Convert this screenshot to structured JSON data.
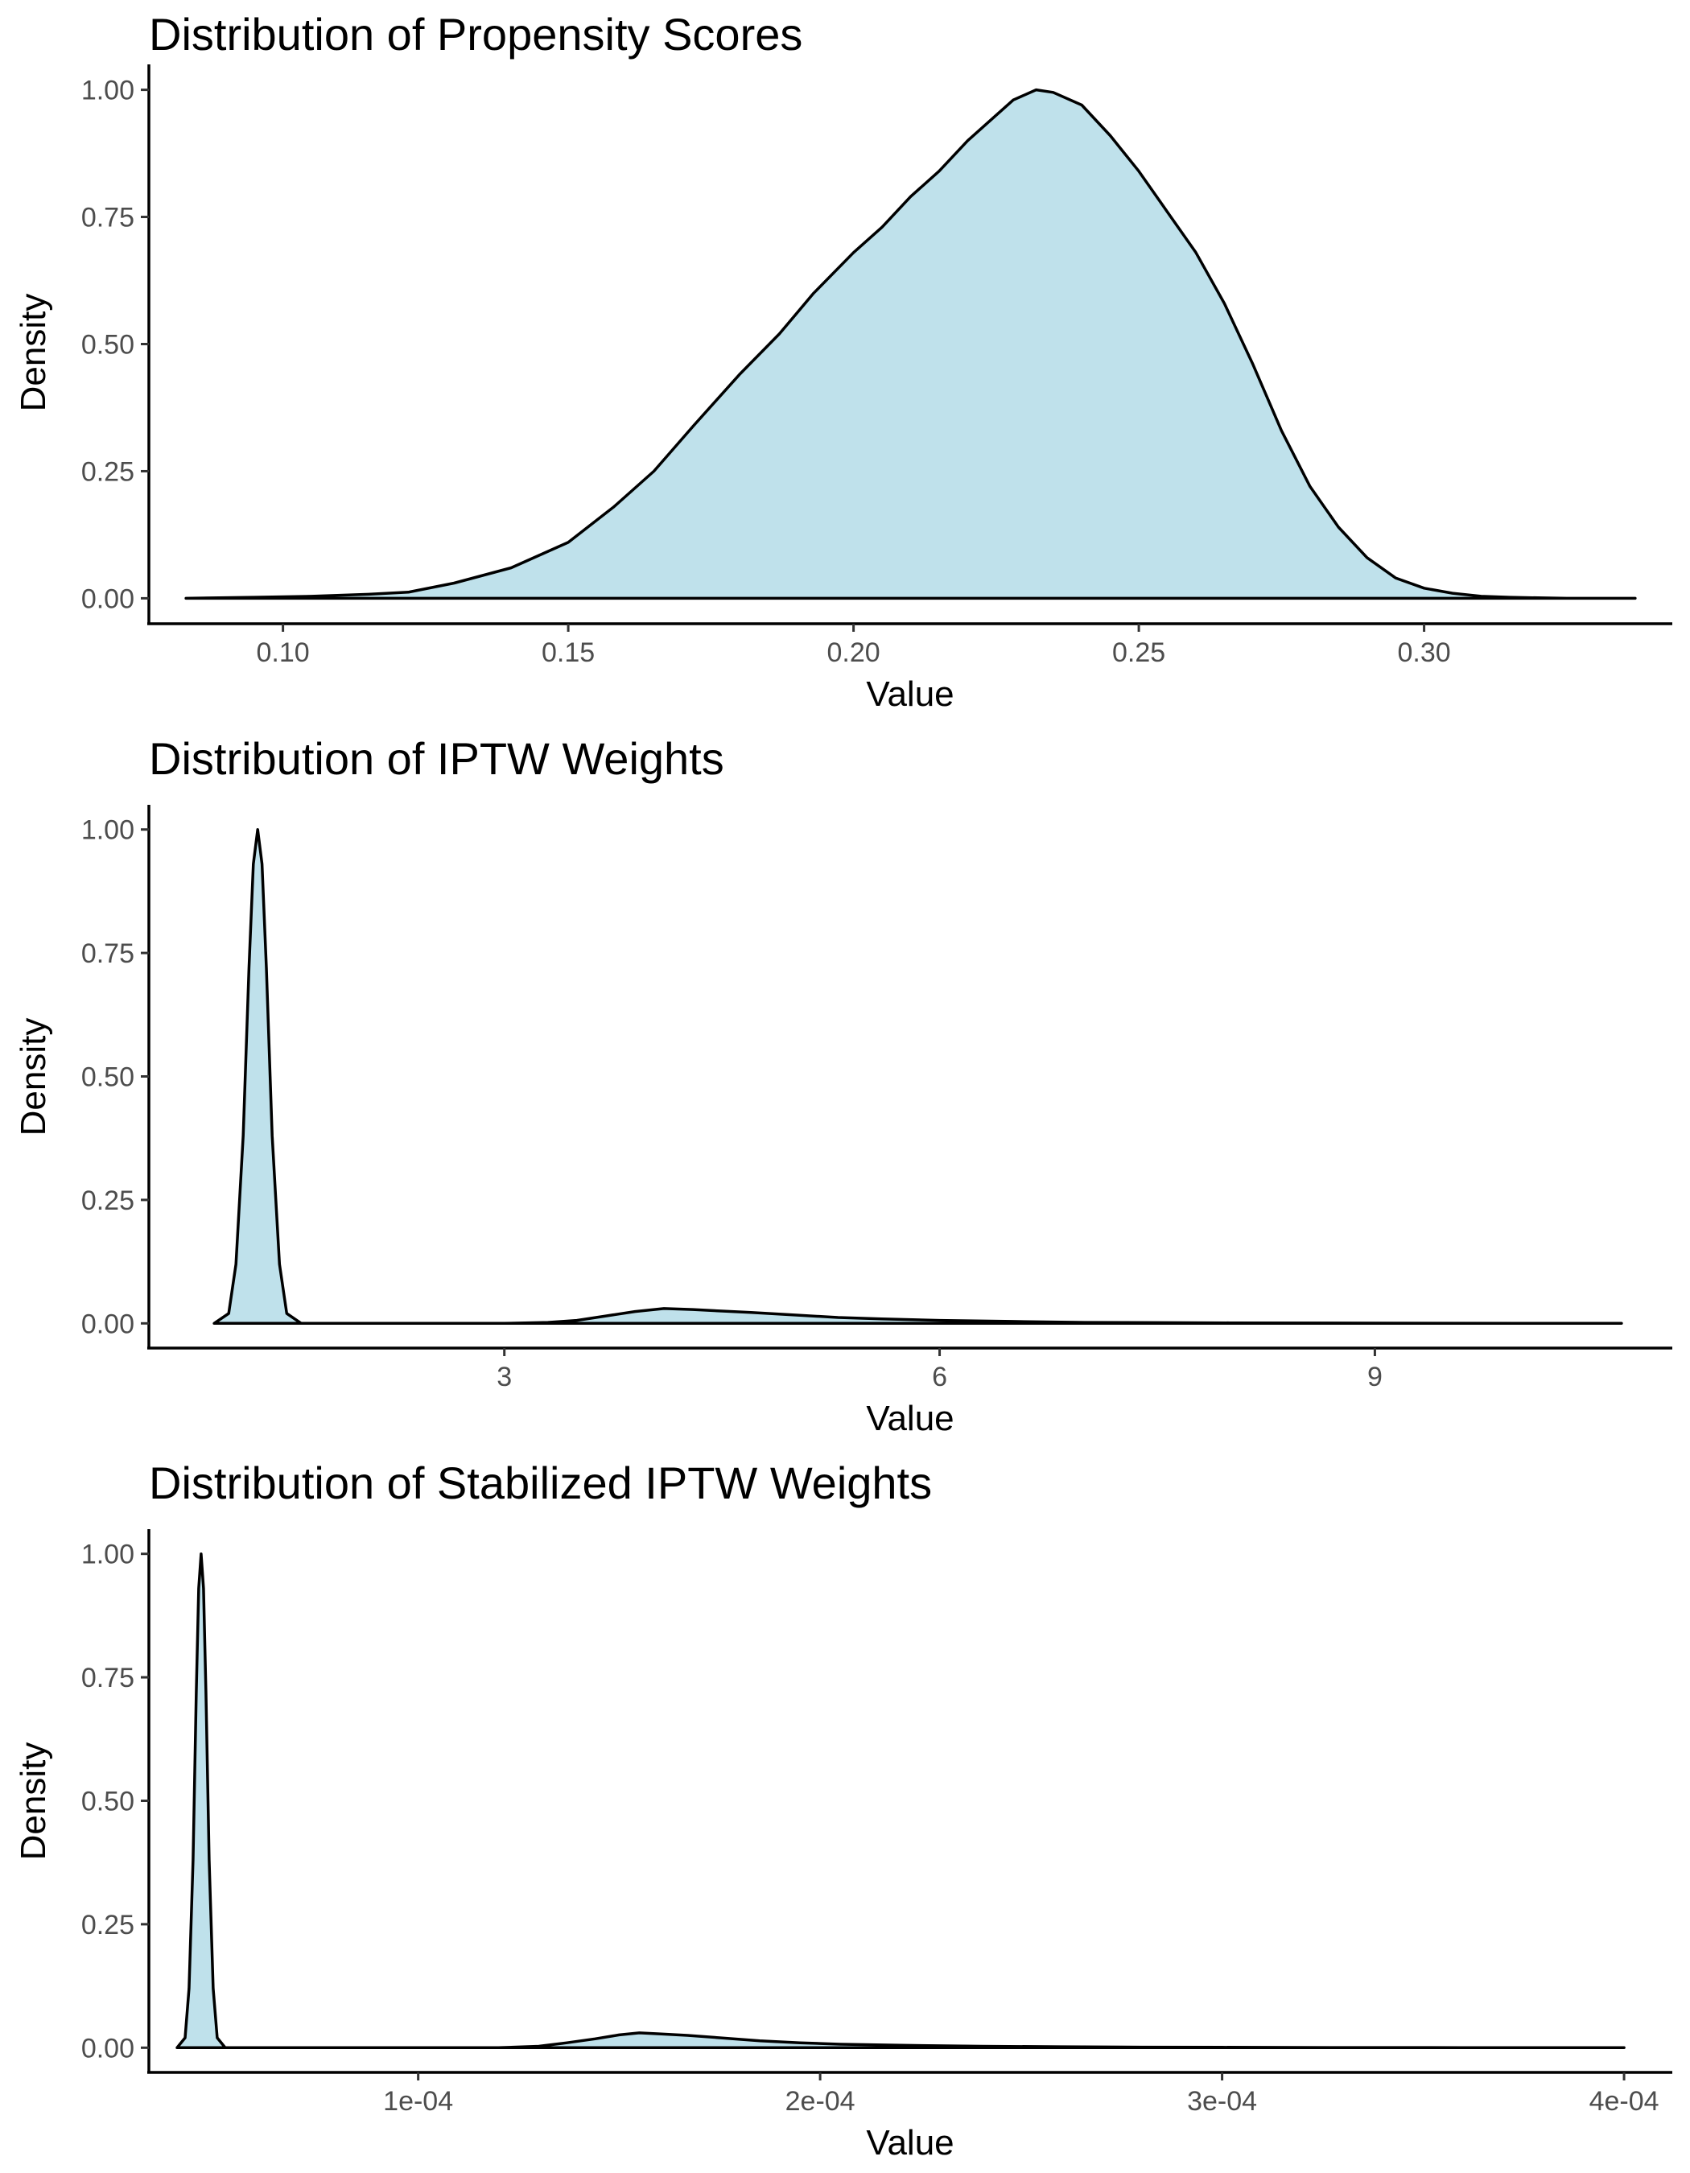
{
  "chart_data": [
    {
      "type": "area",
      "title": "Distribution of Propensity Scores",
      "xlabel": "Value",
      "ylabel": "Density",
      "xlim": [
        0.0765,
        0.3435
      ],
      "ylim": [
        -0.05,
        1.05
      ],
      "x_ticks": [
        0.1,
        0.15,
        0.2,
        0.25,
        0.3
      ],
      "x_tick_labels": [
        "0.10",
        "0.15",
        "0.20",
        "0.25",
        "0.30"
      ],
      "y_ticks": [
        0,
        0.25,
        0.5,
        0.75,
        1.0
      ],
      "y_tick_labels": [
        "0.00",
        "0.25",
        "0.50",
        "0.75",
        "1.00"
      ],
      "fill_color": "#add8e6",
      "line_color": "#000000",
      "grid": false,
      "series": [
        {
          "x": [
            0.083,
            0.095,
            0.105,
            0.115,
            0.122,
            0.13,
            0.14,
            0.15,
            0.158,
            0.165,
            0.172,
            0.18,
            0.187,
            0.193,
            0.2,
            0.205,
            0.21,
            0.215,
            0.22,
            0.225,
            0.228,
            0.232,
            0.235,
            0.24,
            0.245,
            0.25,
            0.255,
            0.26,
            0.265,
            0.27,
            0.275,
            0.28,
            0.285,
            0.29,
            0.295,
            0.3,
            0.305,
            0.31,
            0.315,
            0.32,
            0.325,
            0.337
          ],
          "y": [
            0.0,
            0.002,
            0.004,
            0.008,
            0.012,
            0.03,
            0.06,
            0.11,
            0.18,
            0.25,
            0.34,
            0.44,
            0.52,
            0.6,
            0.68,
            0.73,
            0.79,
            0.84,
            0.9,
            0.95,
            0.98,
            1.0,
            0.995,
            0.97,
            0.91,
            0.84,
            0.76,
            0.68,
            0.58,
            0.46,
            0.33,
            0.22,
            0.14,
            0.08,
            0.04,
            0.02,
            0.01,
            0.004,
            0.002,
            0.001,
            0.0,
            0.0
          ]
        }
      ]
    },
    {
      "type": "area",
      "title": "Distribution of IPTW Weights",
      "xlabel": "Value",
      "ylabel": "Density",
      "xlim": [
        0.55,
        11.05
      ],
      "ylim": [
        -0.05,
        1.05
      ],
      "x_ticks": [
        3,
        6,
        9
      ],
      "x_tick_labels": [
        "3",
        "6",
        "9"
      ],
      "y_ticks": [
        0,
        0.25,
        0.5,
        0.75,
        1.0
      ],
      "y_tick_labels": [
        "0.00",
        "0.25",
        "0.50",
        "0.75",
        "1.00"
      ],
      "fill_color": "#add8e6",
      "line_color": "#000000",
      "grid": false,
      "series": [
        {
          "x": [
            1.0,
            1.1,
            1.15,
            1.2,
            1.24,
            1.27,
            1.3,
            1.33,
            1.36,
            1.4,
            1.45,
            1.5,
            1.6,
            2.0,
            2.5,
            3.0,
            3.3,
            3.5,
            3.7,
            3.9,
            4.1,
            4.3,
            4.5,
            4.7,
            5.0,
            5.3,
            5.6,
            6.0,
            6.5,
            7.0,
            7.5,
            8.0,
            9.0,
            10.0,
            10.7
          ],
          "y": [
            0.0,
            0.02,
            0.12,
            0.38,
            0.72,
            0.93,
            1.0,
            0.93,
            0.72,
            0.38,
            0.12,
            0.02,
            0.0,
            0.0,
            0.0,
            0.0,
            0.002,
            0.006,
            0.015,
            0.024,
            0.03,
            0.028,
            0.025,
            0.022,
            0.017,
            0.012,
            0.009,
            0.006,
            0.004,
            0.002,
            0.0015,
            0.001,
            0.0005,
            0.0002,
            0.0
          ]
        }
      ]
    },
    {
      "type": "area",
      "title": "Distribution of Stabilized IPTW Weights",
      "xlabel": "Value",
      "ylabel": "Density",
      "xlim": [
        3.3e-05,
        0.000412
      ],
      "ylim": [
        -0.05,
        1.05
      ],
      "x_ticks": [
        0.0001,
        0.0002,
        0.0003,
        0.0004
      ],
      "x_tick_labels": [
        "1e-04",
        "2e-04",
        "3e-04",
        "4e-04"
      ],
      "y_ticks": [
        0,
        0.25,
        0.5,
        0.75,
        1.0
      ],
      "y_tick_labels": [
        "0.00",
        "0.25",
        "0.50",
        "0.75",
        "1.00"
      ],
      "fill_color": "#add8e6",
      "line_color": "#000000",
      "grid": false,
      "series": [
        {
          "x": [
            4e-05,
            4.2e-05,
            4.3e-05,
            4.4e-05,
            4.48e-05,
            4.54e-05,
            4.6e-05,
            4.66e-05,
            4.72e-05,
            4.8e-05,
            4.9e-05,
            5e-05,
            5.2e-05,
            7e-05,
            0.0001,
            0.00012,
            0.00013,
            0.000137,
            0.000144,
            0.00015,
            0.000155,
            0.00016,
            0.000167,
            0.000175,
            0.000185,
            0.000195,
            0.000205,
            0.00022,
            0.00024,
            0.00026,
            0.00028,
            0.0003,
            0.00033,
            0.00036,
            0.0004
          ],
          "y": [
            0.0,
            0.02,
            0.12,
            0.38,
            0.72,
            0.93,
            1.0,
            0.93,
            0.72,
            0.38,
            0.12,
            0.02,
            0.0,
            0.0,
            0.0,
            0.0,
            0.003,
            0.01,
            0.018,
            0.026,
            0.03,
            0.028,
            0.025,
            0.02,
            0.014,
            0.01,
            0.007,
            0.005,
            0.003,
            0.002,
            0.0012,
            0.0008,
            0.0004,
            0.0002,
            0.0
          ]
        }
      ]
    }
  ]
}
